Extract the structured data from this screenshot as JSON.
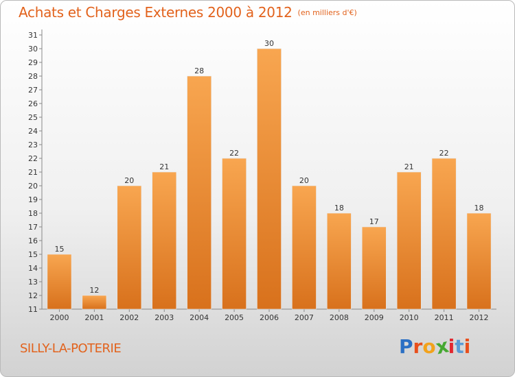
{
  "title": "Achats et Charges Externes 2000 à 2012",
  "unit": "(en milliers d'€)",
  "commune": "SILLY-LA-POTERIE",
  "brand": {
    "letters": [
      "P",
      "r",
      "o",
      "x",
      "i",
      "t",
      "i"
    ],
    "colors": [
      "#2b6fc4",
      "#e84f1c",
      "#f2a21c",
      "#46a832",
      "#e2272f",
      "#5b9bd5",
      "#e84f1c"
    ]
  },
  "colors": {
    "bar_top": "#f8a650",
    "bar_bottom": "#d8711c",
    "title": "#e2621c"
  },
  "chart_data": {
    "type": "bar",
    "categories": [
      "2000",
      "2001",
      "2002",
      "2003",
      "2004",
      "2005",
      "2006",
      "2007",
      "2008",
      "2009",
      "2010",
      "2011",
      "2012"
    ],
    "values": [
      15,
      12,
      20,
      21,
      28,
      22,
      30,
      20,
      18,
      17,
      21,
      22,
      18
    ],
    "ylim": [
      11,
      31
    ],
    "yticks": [
      11,
      12,
      13,
      14,
      15,
      16,
      17,
      18,
      19,
      20,
      21,
      22,
      23,
      24,
      25,
      26,
      27,
      28,
      29,
      30,
      31
    ],
    "grid": false,
    "data_labels": true
  }
}
